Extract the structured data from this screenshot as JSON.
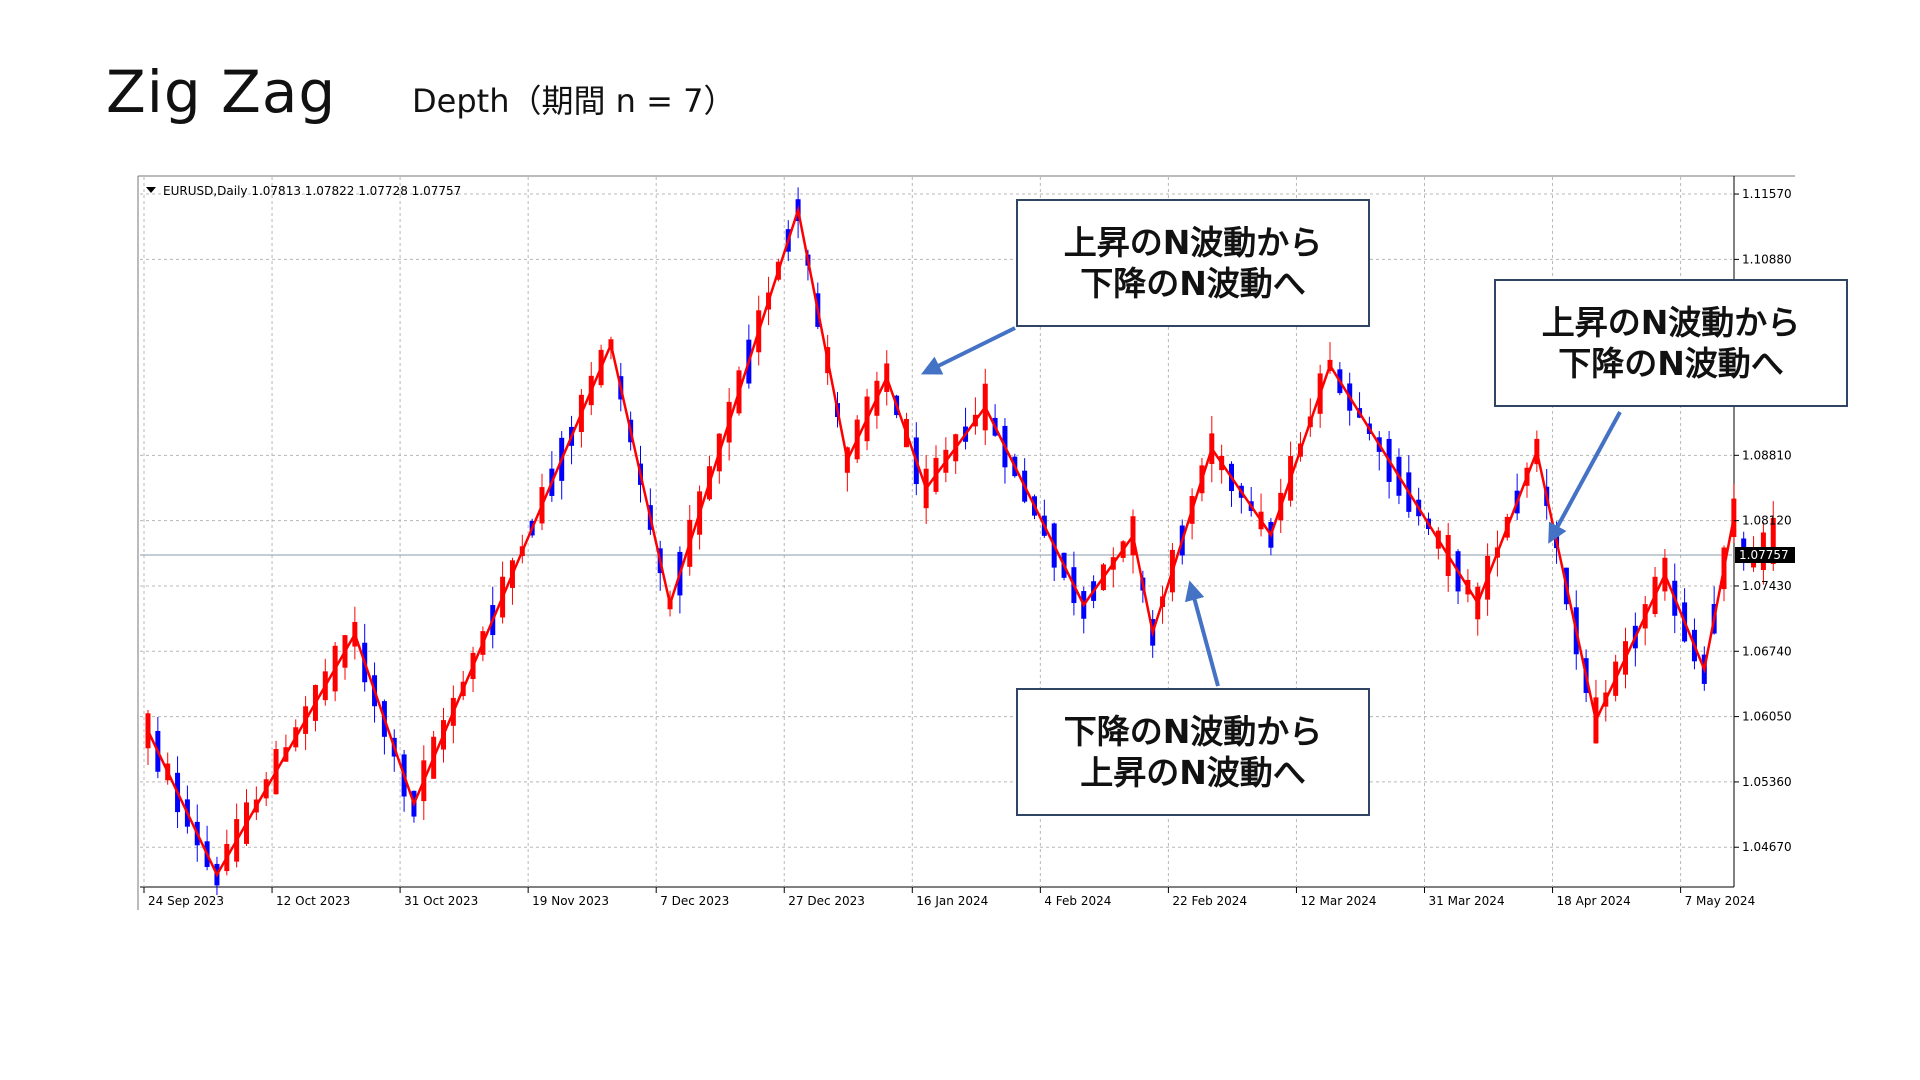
{
  "slide": {
    "title": "Zig Zag",
    "subtitle": "Depth（期間 n = 7）"
  },
  "chart_data": {
    "type": "candlestick",
    "symbol_header": "EURUSD,Daily  1.07813 1.07822 1.07728 1.07757",
    "ylim": [
      1.0425,
      1.1175
    ],
    "y_ticks": [
      1.1157,
      1.1088,
      1.0881,
      1.0812,
      1.0743,
      1.0674,
      1.0605,
      1.0536,
      1.0467
    ],
    "y_tick_labels": [
      "1.11570",
      "1.10880",
      "1.08810",
      "1.08120",
      "1.07430",
      "1.06740",
      "1.06050",
      "1.05360",
      "1.04670"
    ],
    "current_price": 1.07757,
    "current_price_label": "1.07757",
    "x_labels": [
      "24 Sep 2023",
      "12 Oct 2023",
      "31 Oct 2023",
      "19 Nov 2023",
      "7 Dec 2023",
      "27 Dec 2023",
      "16 Jan 2024",
      "4 Feb 2024",
      "22 Feb 2024",
      "12 Mar 2024",
      "31 Mar 2024",
      "18 Apr 2024",
      "7 May 2024"
    ],
    "bar_count": 166,
    "x_label_bar_index": [
      0,
      13,
      26,
      39,
      52,
      65,
      78,
      91,
      104,
      117,
      130,
      143,
      156
    ],
    "zigzag": [
      {
        "bar": 0,
        "price": 1.059
      },
      {
        "bar": 7,
        "price": 1.0438
      },
      {
        "bar": 21,
        "price": 1.0692
      },
      {
        "bar": 27,
        "price": 1.0513
      },
      {
        "bar": 47,
        "price": 1.0998
      },
      {
        "bar": 53,
        "price": 1.0724
      },
      {
        "bar": 66,
        "price": 1.114
      },
      {
        "bar": 71,
        "price": 1.0876
      },
      {
        "bar": 75,
        "price": 1.0963
      },
      {
        "bar": 79,
        "price": 1.0846
      },
      {
        "bar": 85,
        "price": 1.0932
      },
      {
        "bar": 95,
        "price": 1.0723
      },
      {
        "bar": 100,
        "price": 1.0796
      },
      {
        "bar": 102,
        "price": 1.0694
      },
      {
        "bar": 108,
        "price": 1.0888
      },
      {
        "bar": 114,
        "price": 1.0797
      },
      {
        "bar": 120,
        "price": 1.0976
      },
      {
        "bar": 135,
        "price": 1.0725
      },
      {
        "bar": 141,
        "price": 1.0885
      },
      {
        "bar": 147,
        "price": 1.0601
      },
      {
        "bar": 154,
        "price": 1.0755
      },
      {
        "bar": 158,
        "price": 1.0655
      },
      {
        "bar": 161,
        "price": 1.0815
      }
    ],
    "up_color": "#ff0000",
    "down_color": "#0000ff",
    "zigzag_color": "#ff0000",
    "grid": true
  },
  "callouts": [
    {
      "line1": "上昇のN波動から",
      "line2": "下降のN波動へ"
    },
    {
      "line1": "上昇のN波動から",
      "line2": "下降のN波動へ"
    },
    {
      "line1": "下降のN波動から",
      "line2": "上昇のN波動へ"
    }
  ],
  "colors": {
    "arrow": "#4472c4",
    "callout_border": "#2f4563"
  }
}
